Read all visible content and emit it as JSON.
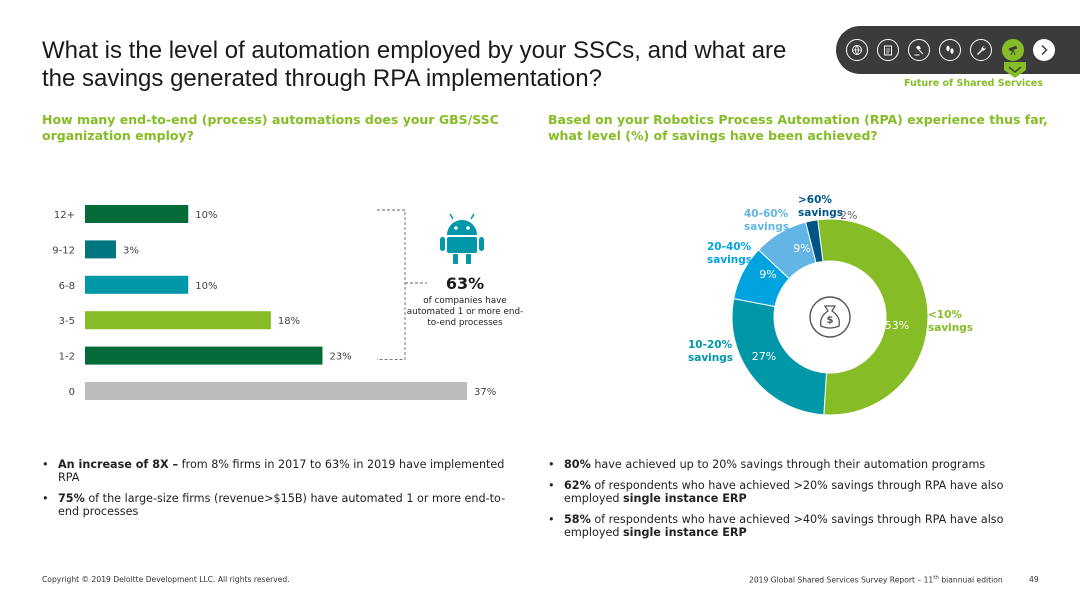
{
  "title": "What is the level of automation employed by your SSCs, and what are the savings generated through RPA implementation?",
  "nav": {
    "icons": [
      "globe-icon",
      "clipboard-icon",
      "gavel-icon",
      "footprints-icon",
      "wrench-icon",
      "telescope-icon",
      "chevron-right-icon"
    ],
    "caption": "Future of Shared Services",
    "accent": "#86bc25",
    "background": "#3b3b3b"
  },
  "left": {
    "question": "How many end-to-end (process) automations does your GBS/SSC organization employ?",
    "callout": {
      "value": "63%",
      "text": "of companies have automated 1 or more end-to-end processes"
    },
    "bullets": [
      {
        "bold": "An increase of 8X –",
        "text": " from 8% firms in 2017 to 63% in 2019 have implemented RPA"
      },
      {
        "bold": "75%",
        "text": " of the large-size firms (revenue>$15B) have automated 1 or more end-to-end processes"
      }
    ]
  },
  "right": {
    "question": "Based on your Robotics Process Automation (RPA) experience thus far, what level (%) of savings have been achieved?",
    "bullets": [
      {
        "bold": "80%",
        "text": " have achieved up to 20% savings through their automation programs"
      },
      {
        "bold": "62%",
        "text": " of respondents who have achieved >20% savings through RPA have also employed ",
        "bold2": "single instance ERP"
      },
      {
        "bold": "58%",
        "text": " of respondents who have achieved >40% savings through RPA have also employed ",
        "bold2": "single instance ERP"
      }
    ]
  },
  "chart_data": [
    {
      "type": "bar",
      "orientation": "horizontal",
      "categories": [
        "12+",
        "9-12",
        "6-8",
        "3-5",
        "1-2",
        "0"
      ],
      "values": [
        10,
        3,
        10,
        18,
        23,
        37
      ],
      "value_labels": [
        "10%",
        "3%",
        "10%",
        "18%",
        "23%",
        "37%"
      ],
      "colors": [
        "#046a38",
        "#007680",
        "#0097a9",
        "#86bc25",
        "#046a38",
        "#bbbcbc"
      ],
      "bracket": "12+ to 1-2 → 63%"
    },
    {
      "type": "pie",
      "style": "donut",
      "slices": [
        {
          "label": "<10% savings",
          "value": 53,
          "value_label": "53%",
          "color": "#86bc25"
        },
        {
          "label": "10-20% savings",
          "value": 27,
          "value_label": "27%",
          "color": "#0097a9"
        },
        {
          "label": "20-40% savings",
          "value": 9,
          "value_label": "9%",
          "color": "#00a3e0"
        },
        {
          "label": "40-60% savings",
          "value": 9,
          "value_label": "9%",
          "color": "#62b5e5"
        },
        {
          "label": ">60% savings",
          "value": 2,
          "value_label": "2%",
          "color": "#005587"
        }
      ],
      "center_icon": "money-bag-icon"
    }
  ],
  "footer": {
    "copyright": "Copyright © 2019 Deloitte Development LLC. All rights reserved.",
    "report_prefix": "2019 Global Shared Services Survey Report – 11",
    "report_sup": "th",
    "report_suffix": " biannual edition",
    "page": "49"
  }
}
